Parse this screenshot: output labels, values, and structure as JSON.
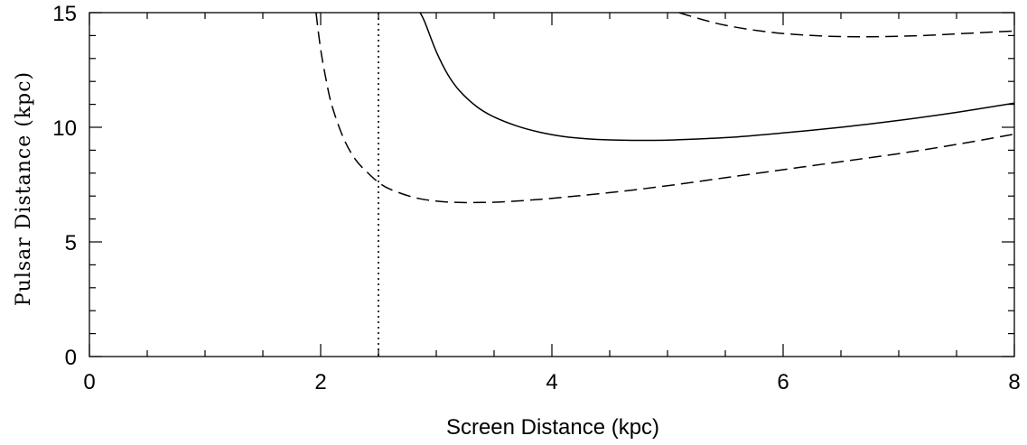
{
  "chart_data": {
    "type": "line",
    "title": "",
    "xlabel": "Screen Distance (kpc)",
    "ylabel": "Pulsar Distance (kpc)",
    "xlim": [
      0,
      8
    ],
    "ylim": [
      0,
      15
    ],
    "x_ticks_major": [
      0,
      2,
      4,
      6,
      8
    ],
    "x_tick_labels": [
      "0",
      "2",
      "4",
      "6",
      "8"
    ],
    "x_ticks_minor": [
      0.5,
      1,
      1.5,
      2.5,
      3,
      3.5,
      4.5,
      5,
      5.5,
      6.5,
      7,
      7.5
    ],
    "y_ticks_major": [
      0,
      5,
      10,
      15
    ],
    "y_tick_labels": [
      "0",
      "5",
      "10",
      "15"
    ],
    "y_ticks_minor": [
      1,
      2,
      3,
      4,
      6,
      7,
      8,
      9,
      11,
      12,
      13,
      14
    ],
    "grid": false,
    "legend": "none",
    "series": [
      {
        "style": "solid",
        "x": [
          2.86,
          2.9,
          3.0,
          3.1,
          3.2,
          3.35,
          3.5,
          3.7,
          3.9,
          4.1,
          4.3,
          4.5,
          4.7,
          5.0,
          5.3,
          5.6,
          6.0,
          6.5,
          7.0,
          7.5,
          8.0
        ],
        "y": [
          15.0,
          14.6,
          13.3,
          12.3,
          11.6,
          10.9,
          10.45,
          10.05,
          9.78,
          9.6,
          9.5,
          9.45,
          9.43,
          9.44,
          9.5,
          9.58,
          9.75,
          10.0,
          10.3,
          10.65,
          11.05
        ]
      },
      {
        "style": "dashed",
        "x": [
          1.96,
          2.0,
          2.05,
          2.1,
          2.2,
          2.3,
          2.4,
          2.5,
          2.6,
          2.8,
          3.0,
          3.2,
          3.4,
          3.6,
          3.8,
          4.0,
          4.5,
          5.0,
          5.5,
          6.0,
          6.5,
          7.0,
          7.5,
          8.0
        ],
        "y": [
          15.0,
          13.4,
          12.0,
          10.9,
          9.5,
          8.6,
          8.05,
          7.6,
          7.3,
          6.95,
          6.78,
          6.72,
          6.72,
          6.75,
          6.82,
          6.9,
          7.15,
          7.45,
          7.8,
          8.15,
          8.5,
          8.85,
          9.25,
          9.7
        ]
      },
      {
        "style": "dashed",
        "x": [
          5.1,
          5.3,
          5.5,
          5.8,
          6.1,
          6.4,
          6.7,
          7.0,
          7.3,
          7.6,
          8.0
        ],
        "y": [
          15.0,
          14.7,
          14.45,
          14.2,
          14.05,
          13.97,
          13.95,
          13.97,
          14.02,
          14.1,
          14.2
        ]
      }
    ],
    "vertical_line": {
      "style": "dotted",
      "x": 2.5
    }
  }
}
